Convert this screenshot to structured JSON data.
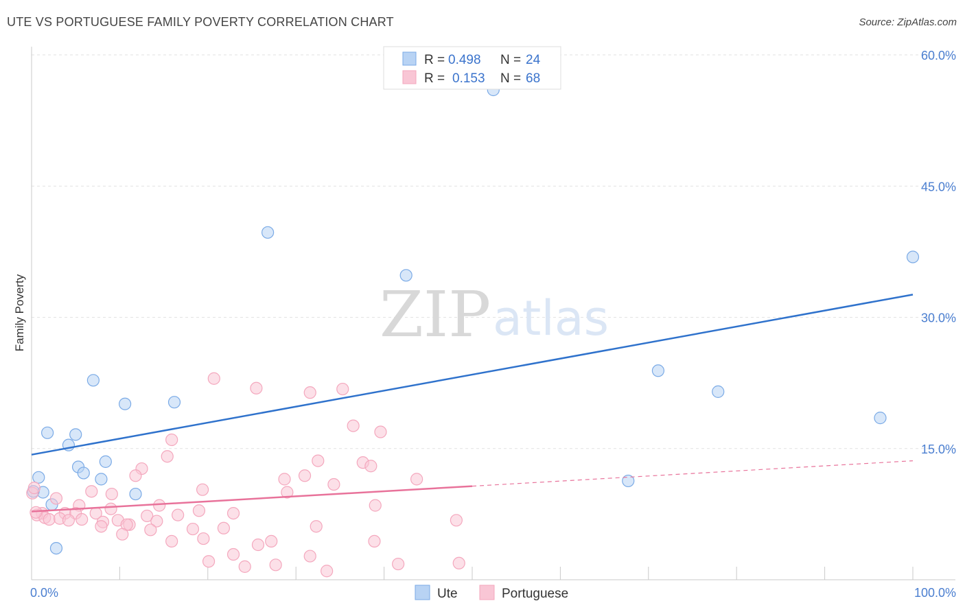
{
  "title": "UTE VS PORTUGUESE FAMILY POVERTY CORRELATION CHART",
  "source": "Source: ZipAtlas.com",
  "watermark": {
    "zip": "ZIP",
    "atlas": "atlas"
  },
  "chart_data": {
    "type": "scatter",
    "title": "UTE VS PORTUGUESE FAMILY POVERTY CORRELATION CHART",
    "xlabel": "",
    "ylabel": "Family Poverty",
    "xlim": [
      0,
      100
    ],
    "ylim": [
      0,
      60
    ],
    "x_tick_labels": [
      "0.0%",
      "100.0%"
    ],
    "y_ticks": [
      15,
      30,
      45,
      60
    ],
    "y_tick_labels": [
      "15.0%",
      "30.0%",
      "45.0%",
      "60.0%"
    ],
    "grid": true,
    "legend_placement": "top-center",
    "legend": [
      {
        "r_label": "R =",
        "r_value": "0.498",
        "n_label": "N =",
        "n_value": "24"
      },
      {
        "r_label": "R =",
        "r_value": "0.153",
        "n_label": "N =",
        "n_value": "68"
      }
    ],
    "series": [
      {
        "name": "Ute",
        "color": "#7aaae6",
        "line_color": "#2f72cc",
        "trend": {
          "x0": 0,
          "y0": 14.3,
          "x1": 100,
          "y1": 32.6,
          "dashed_from": null
        },
        "points": [
          [
            52.4,
            56.0
          ],
          [
            26.8,
            39.7
          ],
          [
            42.5,
            34.8
          ],
          [
            100.0,
            36.9
          ],
          [
            71.1,
            23.9
          ],
          [
            77.9,
            21.5
          ],
          [
            96.3,
            18.5
          ],
          [
            67.7,
            11.3
          ],
          [
            7.0,
            22.8
          ],
          [
            10.6,
            20.1
          ],
          [
            16.2,
            20.3
          ],
          [
            1.8,
            16.8
          ],
          [
            5.0,
            16.6
          ],
          [
            4.2,
            15.4
          ],
          [
            8.4,
            13.5
          ],
          [
            5.3,
            12.9
          ],
          [
            5.9,
            12.2
          ],
          [
            7.9,
            11.5
          ],
          [
            11.8,
            9.8
          ],
          [
            0.8,
            11.7
          ],
          [
            1.3,
            10.0
          ],
          [
            0.2,
            10.1
          ],
          [
            2.3,
            8.6
          ],
          [
            2.8,
            3.6
          ]
        ]
      },
      {
        "name": "Portuguese",
        "color": "#f4a7bd",
        "line_color": "#e8729a",
        "trend": {
          "x0": 0,
          "y0": 7.8,
          "x1": 100,
          "y1": 13.6,
          "dashed_from": 50
        },
        "points": [
          [
            20.7,
            23.0
          ],
          [
            25.5,
            21.9
          ],
          [
            31.6,
            21.4
          ],
          [
            35.3,
            21.8
          ],
          [
            36.5,
            17.6
          ],
          [
            39.6,
            16.9
          ],
          [
            15.9,
            16.0
          ],
          [
            15.4,
            14.1
          ],
          [
            32.5,
            13.6
          ],
          [
            37.6,
            13.4
          ],
          [
            38.5,
            13.0
          ],
          [
            12.5,
            12.7
          ],
          [
            11.8,
            11.9
          ],
          [
            31.0,
            11.9
          ],
          [
            28.7,
            11.5
          ],
          [
            43.7,
            11.5
          ],
          [
            34.3,
            10.9
          ],
          [
            19.4,
            10.3
          ],
          [
            6.8,
            10.1
          ],
          [
            9.1,
            9.8
          ],
          [
            29.0,
            10.0
          ],
          [
            2.8,
            9.3
          ],
          [
            14.5,
            8.5
          ],
          [
            5.4,
            8.5
          ],
          [
            9.0,
            8.1
          ],
          [
            39.0,
            8.5
          ],
          [
            1.2,
            7.6
          ],
          [
            3.8,
            7.6
          ],
          [
            5.0,
            7.6
          ],
          [
            7.3,
            7.6
          ],
          [
            13.1,
            7.3
          ],
          [
            16.6,
            7.4
          ],
          [
            19.0,
            7.9
          ],
          [
            22.9,
            7.6
          ],
          [
            0.6,
            7.4
          ],
          [
            1.5,
            7.1
          ],
          [
            2.0,
            6.9
          ],
          [
            3.2,
            7.0
          ],
          [
            4.2,
            6.8
          ],
          [
            5.7,
            6.9
          ],
          [
            8.1,
            6.6
          ],
          [
            9.8,
            6.8
          ],
          [
            11.1,
            6.3
          ],
          [
            14.2,
            6.7
          ],
          [
            10.8,
            6.3
          ],
          [
            7.9,
            6.1
          ],
          [
            13.5,
            5.7
          ],
          [
            18.3,
            5.8
          ],
          [
            21.8,
            5.9
          ],
          [
            32.3,
            6.1
          ],
          [
            48.2,
            6.8
          ],
          [
            10.3,
            5.2
          ],
          [
            15.9,
            4.4
          ],
          [
            19.5,
            4.7
          ],
          [
            27.2,
            4.4
          ],
          [
            25.7,
            4.0
          ],
          [
            38.9,
            4.4
          ],
          [
            22.9,
            2.9
          ],
          [
            31.6,
            2.7
          ],
          [
            20.1,
            2.1
          ],
          [
            24.2,
            1.5
          ],
          [
            27.7,
            1.7
          ],
          [
            33.5,
            1.0
          ],
          [
            41.6,
            1.8
          ],
          [
            48.5,
            1.9
          ],
          [
            0.1,
            9.9
          ],
          [
            0.3,
            10.5
          ],
          [
            0.5,
            7.7
          ]
        ]
      }
    ]
  },
  "bottom_legend": [
    {
      "label": "Ute",
      "color": "#b8d3f4",
      "border": "#7aaae6"
    },
    {
      "label": "Portuguese",
      "color": "#f9c6d5",
      "border": "#f4a7bd"
    }
  ]
}
